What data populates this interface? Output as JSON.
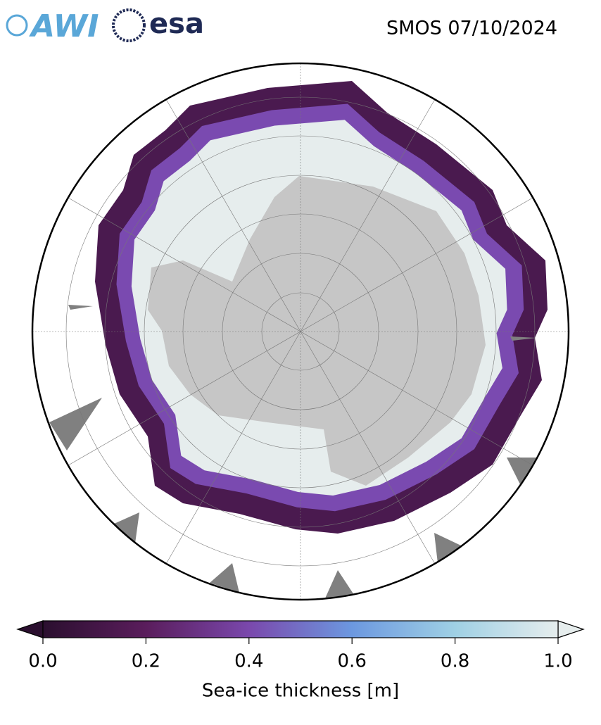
{
  "header": {
    "logos": [
      "AWI",
      "esa"
    ],
    "title": "SMOS 07/10/2024"
  },
  "colorbar": {
    "label": "Sea-ice thickness [m]",
    "lim": [
      0,
      1
    ],
    "ticks": [
      {
        "value": 0,
        "label": "0.0"
      },
      {
        "value": 0.2,
        "label": "0.2"
      },
      {
        "value": 0.4,
        "label": "0.4"
      },
      {
        "value": 0.6,
        "label": "0.6"
      },
      {
        "value": 0.8,
        "label": "0.8"
      },
      {
        "value": 1,
        "label": "1.0"
      }
    ]
  }
}
